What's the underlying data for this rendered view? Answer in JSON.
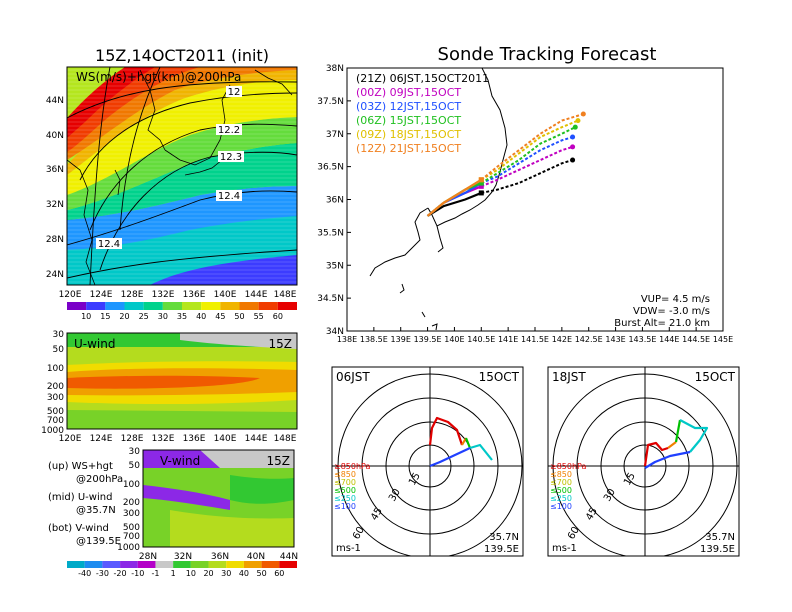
{
  "colors": {
    "blue_00z": "#1060ff",
    "black_21z": "#000000",
    "magenta_00z": "#c000c0",
    "blue_03z": "#2050ff",
    "green_06z": "#20c020",
    "yellow_09z": "#e0c000",
    "orange_12z": "#f08020",
    "ws_scale": [
      "#7a00c8",
      "#3c3cff",
      "#1e96ff",
      "#00c8c8",
      "#00d28c",
      "#64dc3c",
      "#b4e61e",
      "#f0f000",
      "#f0b400",
      "#f07800",
      "#f03c00",
      "#e60000"
    ],
    "diverging_scale": [
      "#00aac8",
      "#1e8cf0",
      "#5a5aff",
      "#8c28e6",
      "#b400c8",
      "#c8c8c8",
      "#32c832",
      "#78d228",
      "#b4dc1e",
      "#f0dc00",
      "#f0a000",
      "#f05a00",
      "#e60000"
    ],
    "rose_850": "#e00000",
    "rose_700": "#f08000",
    "rose_500": "#00c000",
    "rose_250": "#00c8c8",
    "rose_100": "#2040ff"
  },
  "map_panel": {
    "title": "15Z,14OCT2011 (init)",
    "overlay_label": "WS(m/s)+hgt(km)@200hPa",
    "lat_ticks": [
      "44N",
      "40N",
      "36N",
      "32N",
      "28N",
      "24N"
    ],
    "lon_ticks": [
      "120E",
      "124E",
      "128E",
      "132E",
      "136E",
      "140E",
      "144E",
      "148E"
    ],
    "contour_labels": [
      "12",
      "12.2",
      "12.3",
      "12.4",
      "12.4"
    ],
    "colorbar_ticks": [
      "10",
      "15",
      "20",
      "25",
      "30",
      "35",
      "40",
      "45",
      "50",
      "55",
      "60"
    ]
  },
  "uwind_panel": {
    "title": "U-wind",
    "time": "15Z",
    "pressure_ticks": [
      "30",
      "50",
      "100",
      "200",
      "300",
      "500",
      "700",
      "1000"
    ],
    "lon_ticks": [
      "120E",
      "124E",
      "128E",
      "132E",
      "136E",
      "140E",
      "144E",
      "148E"
    ]
  },
  "vwind_panel": {
    "title": "V-wind",
    "time": "15Z",
    "pressure_ticks": [
      "30",
      "50",
      "100",
      "200",
      "300",
      "500",
      "700",
      "1000"
    ],
    "lat_ticks": [
      "28N",
      "32N",
      "36N",
      "40N",
      "44N"
    ],
    "colorbar_ticks": [
      "-40",
      "-30",
      "-20",
      "-10",
      "-1",
      "1",
      "10",
      "20",
      "30",
      "40",
      "50",
      "60"
    ]
  },
  "legend_notes": [
    {
      "line1": "(up) WS+hgt",
      "line2": "@200hPa"
    },
    {
      "line1": "(mid) U-wind",
      "line2": "@35.7N"
    },
    {
      "line1": "(bot) V-wind",
      "line2": "@139.5E"
    }
  ],
  "tracking_panel": {
    "title": "Sonde Tracking Forecast",
    "lat_ticks": [
      "38N",
      "37.5N",
      "37N",
      "36.5N",
      "36N",
      "35.5N",
      "35N",
      "34.5N",
      "34N"
    ],
    "lon_ticks": [
      "138E",
      "138.5E",
      "139E",
      "139.5E",
      "140E",
      "140.5E",
      "141E",
      "141.5E",
      "142E",
      "142.5E",
      "143E",
      "143.5E",
      "144E",
      "144.5E",
      "145E"
    ],
    "launches": [
      {
        "label": "(21Z)  06JST,15OCT2011",
        "color": "#000000"
      },
      {
        "label": "(00Z)  09JST,15OCT",
        "color": "#c000c0"
      },
      {
        "label": "(03Z)  12JST,15OCT",
        "color": "#2050ff"
      },
      {
        "label": "(06Z)  15JST,15OCT",
        "color": "#20c020"
      },
      {
        "label": "(09Z)  18JST,15OCT",
        "color": "#e0c000"
      },
      {
        "label": "(12Z)  21JST,15OCT",
        "color": "#f08020"
      }
    ],
    "params": [
      "VUP= 4.5 m/s",
      "VDW= -3.0 m/s",
      "Burst Alt= 21.0 km"
    ]
  },
  "chart_data": [
    {
      "type": "line",
      "title": "Sonde Tracking Forecast",
      "xlim": [
        138,
        145
      ],
      "ylim": [
        34,
        38
      ],
      "series": [
        {
          "name": "(21Z)  06JST,15OCT2011",
          "x": [
            139.5,
            139.8,
            140.2,
            140.5,
            140.8,
            141.2,
            141.6,
            142.0,
            142.2
          ],
          "y": [
            35.75,
            35.9,
            36.0,
            36.1,
            36.15,
            36.25,
            36.4,
            36.55,
            36.6
          ]
        },
        {
          "name": "(00Z)  09JST,15OCT",
          "x": [
            139.5,
            139.8,
            140.2,
            140.5,
            140.8,
            141.2,
            141.6,
            142.0,
            142.2
          ],
          "y": [
            35.75,
            35.95,
            36.1,
            36.2,
            36.3,
            36.45,
            36.6,
            36.75,
            36.8
          ]
        },
        {
          "name": "(03Z)  12JST,15OCT",
          "x": [
            139.5,
            139.8,
            140.2,
            140.5,
            140.8,
            141.2,
            141.6,
            142.0,
            142.2
          ],
          "y": [
            35.75,
            35.95,
            36.1,
            36.25,
            36.35,
            36.55,
            36.75,
            36.9,
            36.95
          ]
        },
        {
          "name": "(06Z)  15JST,15OCT",
          "x": [
            139.5,
            139.8,
            140.2,
            140.5,
            140.8,
            141.2,
            141.6,
            142.0,
            142.25
          ],
          "y": [
            35.75,
            35.95,
            36.15,
            36.25,
            36.4,
            36.6,
            36.85,
            37.0,
            37.1
          ]
        },
        {
          "name": "(09Z)  18JST,15OCT",
          "x": [
            139.5,
            139.8,
            140.2,
            140.5,
            140.8,
            141.2,
            141.6,
            142.0,
            142.3
          ],
          "y": [
            35.75,
            35.95,
            36.15,
            36.3,
            36.45,
            36.7,
            36.95,
            37.1,
            37.2
          ]
        },
        {
          "name": "(12Z)  21JST,15OCT",
          "x": [
            139.5,
            139.8,
            140.2,
            140.5,
            140.8,
            141.2,
            141.6,
            142.0,
            142.4
          ],
          "y": [
            35.75,
            35.95,
            36.15,
            36.3,
            36.5,
            36.75,
            37.0,
            37.2,
            37.3
          ]
        }
      ]
    }
  ],
  "rose_left": {
    "time": "06JST",
    "date": "15OCT",
    "ring_labels": [
      "15",
      "30",
      "45",
      "60"
    ],
    "levels": [
      "≥850hPa",
      "≤850",
      "≤700",
      "≤500",
      "≤250",
      "≤100"
    ],
    "location_lat": "35.7N",
    "location_lon": "139.5E",
    "unit": "ms-1"
  },
  "rose_right": {
    "time": "18JST",
    "date": "15OCT",
    "ring_labels": [
      "15",
      "30",
      "45",
      "60"
    ],
    "levels": [
      "≥850hPa",
      "≤850",
      "≤700",
      "≤500",
      "≤250",
      "≤100"
    ],
    "location_lat": "35.7N",
    "location_lon": "139.5E",
    "unit": "ms-1"
  }
}
